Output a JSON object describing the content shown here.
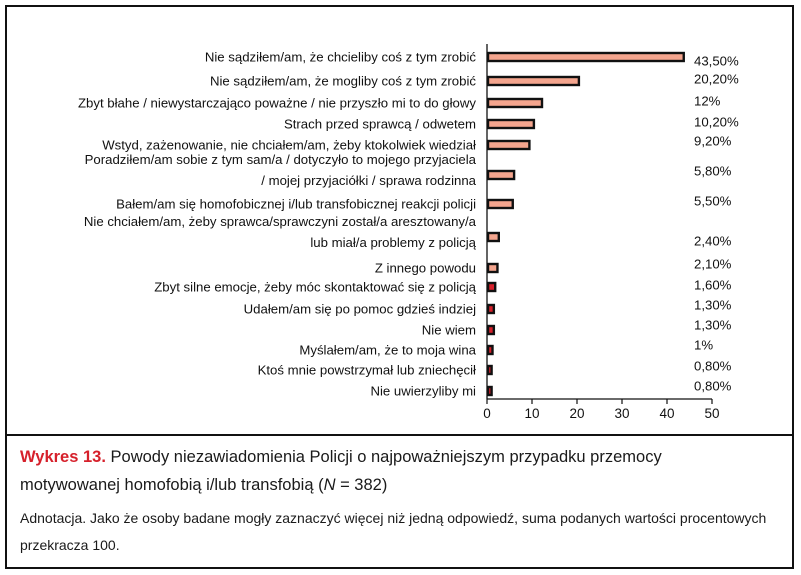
{
  "chart_data": {
    "type": "bar",
    "orientation": "horizontal",
    "xlim": [
      0,
      50
    ],
    "xticks": [
      "0",
      "10",
      "20",
      "30",
      "40",
      "50"
    ],
    "grid": false,
    "bar_fill": "#f4a58e",
    "bar_edge": "#111111",
    "categories": [
      [
        "Nie sądziłem/am, że chcieliby coś z tym zrobić"
      ],
      [
        "Nie sądziłem/am, że mogliby coś z tym zrobić"
      ],
      [
        "Zbyt błahe / niewystarczająco poważne / nie przyszło mi to do głowy"
      ],
      [
        "Strach przed sprawcą /  odwetem"
      ],
      [
        "Wstyd, zażenowanie, nie chciałem/am, żeby ktokolwiek wiedział"
      ],
      [
        "Poradziłem/am sobie z tym sam/a / dotyczyło to mojego przyjaciela",
        "/ mojej przyjaciółki / sprawa rodzinna"
      ],
      [
        "Bałem/am się homofobicznej i/lub transfobicznej reakcji policji"
      ],
      [
        "Nie chciałem/am, żeby sprawca/sprawczyni został/a aresztowany/a",
        "lub miał/a problemy z policją"
      ],
      [
        "Z innego powodu"
      ],
      [
        "Zbyt silne emocje, żeby móc skontaktować się z policją"
      ],
      [
        "Udałem/am się po pomoc gdzieś indziej"
      ],
      [
        "Nie wiem"
      ],
      [
        "Myślałem/am, że to moja wina"
      ],
      [
        "Ktoś mnie powstrzymał lub zniechęcił"
      ],
      [
        "Nie uwierzyliby mi"
      ]
    ],
    "values": [
      43.5,
      20.2,
      12,
      10.2,
      9.2,
      5.8,
      5.5,
      2.4,
      2.1,
      1.6,
      1.3,
      1.3,
      1,
      0.8,
      0.8
    ],
    "value_labels": [
      "43,50%",
      "20,20%",
      "12%",
      "10,20%",
      "9,20%",
      "5,80%",
      "5,50%",
      "2,40%",
      "2,10%",
      "1,60%",
      "1,30%",
      "1,30%",
      "1%",
      "0,80%",
      "0,80%"
    ]
  },
  "caption": {
    "label": "Wykres 13.",
    "title_part1": " Powody niezawiadomienia Policji o najpoważniejszym przypadku przemocy",
    "title_part2_pre": "motywowanej homofobią i/lub transfobią (",
    "title_n": "N",
    "title_part2_post": " = 382)",
    "note": "Adnotacja. Jako że osoby badane mogły zaznaczyć więcej niż jedną odpowiedź, suma podanych wartości procentowych przekracza 100."
  }
}
